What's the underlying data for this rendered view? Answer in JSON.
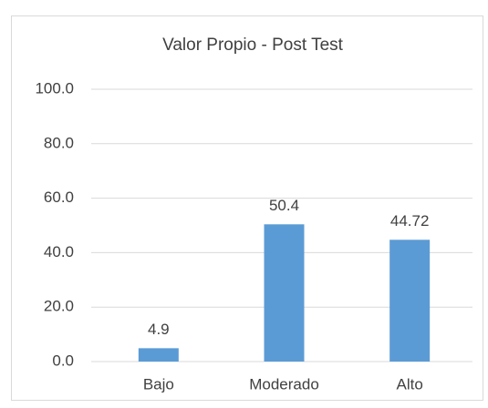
{
  "chart_data": {
    "type": "bar",
    "title": "Valor Propio - Post Test",
    "categories": [
      "Bajo",
      "Moderado",
      "Alto"
    ],
    "values": [
      4.9,
      50.4,
      44.72
    ],
    "color": "#5b9bd5",
    "ylim": [
      0,
      100
    ],
    "yticks": [
      {
        "value": 0,
        "label": "0.0"
      },
      {
        "value": 20,
        "label": "20.0"
      },
      {
        "value": 40,
        "label": "40.0"
      },
      {
        "value": 60,
        "label": "60.0"
      },
      {
        "value": 80,
        "label": "80.0"
      },
      {
        "value": 100,
        "label": "100.0"
      }
    ],
    "grid": true
  }
}
